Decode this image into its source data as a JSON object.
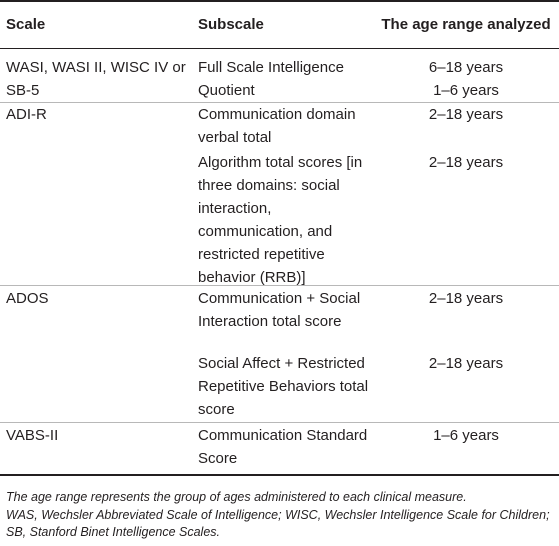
{
  "table": {
    "headers": {
      "scale": "Scale",
      "subscale": "Subscale",
      "age": "The age range analyzed"
    },
    "rows": [
      {
        "scale": "WASI, WASI II, WISC IV or SB-5",
        "subscale": "Full Scale Intelligence Quotient",
        "age_lines": [
          "6–18 years",
          "1–6 years"
        ]
      },
      {
        "scale": "ADI-R",
        "subscale": "Communication domain verbal total",
        "age_lines": [
          "2–18 years"
        ]
      },
      {
        "scale": "",
        "subscale": "Algorithm total scores [in three domains: social interaction, communication, and restricted repetitive behavior (RRB)]",
        "age_lines": [
          "2–18 years"
        ]
      },
      {
        "scale": "ADOS",
        "subscale": "Communication + Social Interaction total score",
        "age_lines": [
          "2–18 years"
        ]
      },
      {
        "scale": "",
        "subscale": "Social Affect + Restricted Repetitive Behaviors total score",
        "age_lines": [
          "2–18 years"
        ]
      },
      {
        "scale": "VABS-II",
        "subscale": "Communication Standard Score",
        "age_lines": [
          "1–6 years"
        ]
      }
    ]
  },
  "footnote": {
    "line1": "The age range represents the group of ages administered to each clinical measure.",
    "line2": "WAS, Wechsler Abbreviated Scale of Intelligence; WISC, Wechsler Intelligence Scale for Children; SB, Stanford Binet Intelligence Scales."
  }
}
